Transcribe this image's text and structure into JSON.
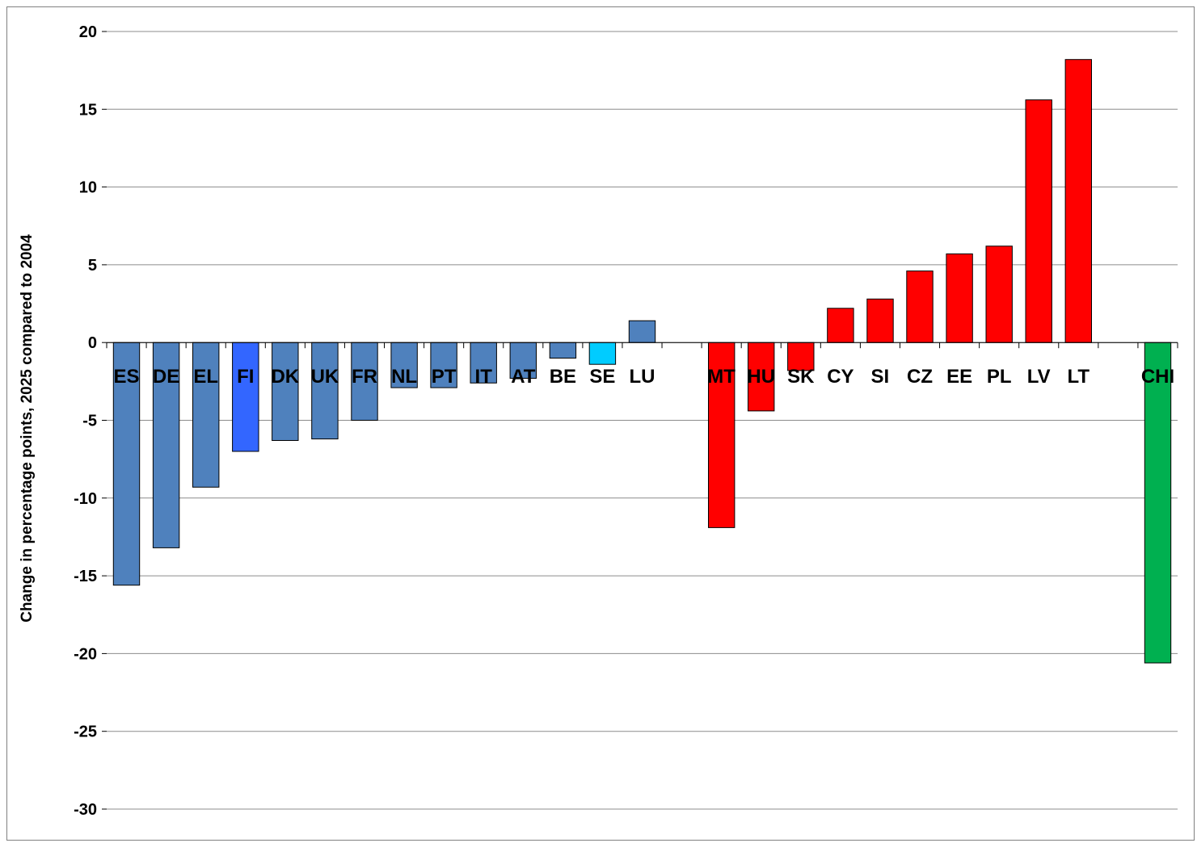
{
  "chart_data": {
    "type": "bar",
    "title": "",
    "xlabel": "",
    "ylabel": "Change in percentage points, 2025 compared to 2004",
    "ylim": [
      -30,
      20
    ],
    "yticks": [
      20,
      15,
      10,
      5,
      0,
      -5,
      -10,
      -15,
      -20,
      -25,
      -30
    ],
    "ytick_labels": [
      "20",
      "15",
      "10",
      "5",
      "0",
      "-5",
      "-10",
      "-15",
      "-20",
      "-25",
      "-30"
    ],
    "grid": true,
    "legend": "none",
    "categories": [
      "ES",
      "DE",
      "EL",
      "FI",
      "DK",
      "UK",
      "FR",
      "NL",
      "PT",
      "IT",
      "AT",
      "BE",
      "SE",
      "LU",
      "",
      "MT",
      "HU",
      "SK",
      "CY",
      "SI",
      "CZ",
      "EE",
      "PL",
      "LV",
      "LT",
      "",
      "CHI"
    ],
    "values": [
      -15.6,
      -13.2,
      -9.3,
      -7.0,
      -6.3,
      -6.2,
      -5.0,
      -2.9,
      -2.9,
      -2.6,
      -2.3,
      -1.0,
      -1.4,
      1.4,
      null,
      -11.9,
      -4.4,
      -1.8,
      2.2,
      2.8,
      4.6,
      5.7,
      6.2,
      15.6,
      18.2,
      null,
      -20.6
    ],
    "bar_colors": [
      "#4F81BD",
      "#4F81BD",
      "#4F81BD",
      "#3366FF",
      "#4F81BD",
      "#4F81BD",
      "#4F81BD",
      "#4F81BD",
      "#4F81BD",
      "#4F81BD",
      "#4F81BD",
      "#4F81BD",
      "#00CCFF",
      "#4F81BD",
      null,
      "#FF0000",
      "#FF0000",
      "#FF0000",
      "#FF0000",
      "#FF0000",
      "#FF0000",
      "#FF0000",
      "#FF0000",
      "#FF0000",
      "#FF0000",
      null,
      "#00B050"
    ]
  }
}
